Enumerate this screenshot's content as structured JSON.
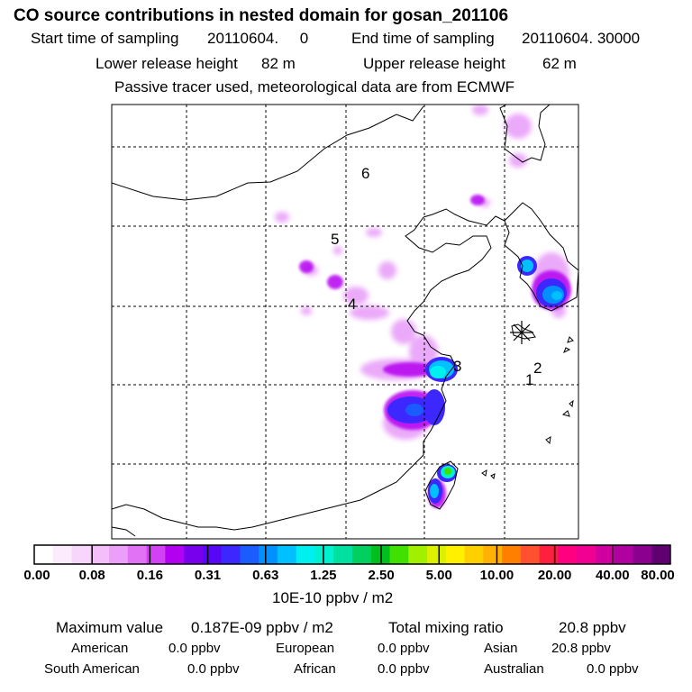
{
  "header": {
    "title": "CO  source contributions in nested domain for gosan_201106",
    "start_label": "Start time of sampling",
    "start_value": "20110604.     0",
    "end_label": "End time of sampling",
    "end_value": "20110604. 30000",
    "lower_label": "Lower release height",
    "lower_value": "82 m",
    "upper_label": "Upper release height",
    "upper_value": "62 m",
    "note": "Passive tracer used, meteorological data are from ECMWF"
  },
  "map": {
    "region_labels": [
      "1",
      "2",
      "3",
      "4",
      "5",
      "6"
    ],
    "receptor_marker": "asterisk-receptor-symbol"
  },
  "colorbar": {
    "tick_labels": [
      "0.00",
      "0.08",
      "0.16",
      "0.31",
      "0.63",
      "1.25",
      "2.50",
      "5.00",
      "10.00",
      "20.00",
      "40.00",
      "80.00"
    ],
    "colors": [
      "#ffffff",
      "#fcebfd",
      "#f8d6fb",
      "#f3befa",
      "#ec9ff8",
      "#e172f6",
      "#d242f4",
      "#b400f0",
      "#7800ec",
      "#5a06f6",
      "#3c28ff",
      "#1a5cff",
      "#0090ff",
      "#00c0ff",
      "#00f0f0",
      "#00f0d0",
      "#00e0a0",
      "#00d060",
      "#00c020",
      "#40e000",
      "#a0f000",
      "#dcf000",
      "#fff000",
      "#ffd000",
      "#ffb000",
      "#ff8000",
      "#ff5030",
      "#ff2040",
      "#ff0080",
      "#f00090",
      "#d000a0",
      "#b000a0",
      "#8c0090",
      "#600070"
    ],
    "unit": "10E-10 ppbv / m2"
  },
  "summary": {
    "max_label": "Maximum value",
    "max_value": "0.187E-09 ppbv / m2",
    "total_label": "Total mixing ratio",
    "total_value": "20.8 ppbv",
    "american_label": "American",
    "american_value": "0.0 ppbv",
    "european_label": "European",
    "european_value": "0.0 ppbv",
    "asian_label": "Asian",
    "asian_value": "20.8 ppbv",
    "south_american_label": "South American",
    "south_american_value": "0.0 ppbv",
    "african_label": "African",
    "african_value": "0.0 ppbv",
    "australian_label": "Australian",
    "australian_value": "0.0 ppbv"
  }
}
